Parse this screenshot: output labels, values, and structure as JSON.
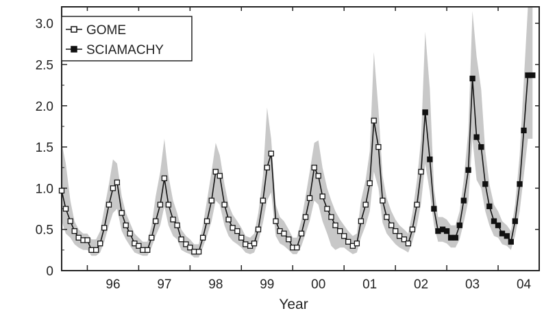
{
  "chart_data": {
    "type": "line",
    "xlabel": "Year",
    "ylabel": "",
    "xlim": [
      1995.5,
      2004.8
    ],
    "ylim": [
      0,
      3.2
    ],
    "x_ticks": [
      {
        "value": 1996.5,
        "label": "96"
      },
      {
        "value": 1997.5,
        "label": "97"
      },
      {
        "value": 1998.5,
        "label": "98"
      },
      {
        "value": 1999.5,
        "label": "99"
      },
      {
        "value": 2000.5,
        "label": "00"
      },
      {
        "value": 2001.5,
        "label": "01"
      },
      {
        "value": 2002.5,
        "label": "02"
      },
      {
        "value": 2003.5,
        "label": "03"
      },
      {
        "value": 2004.5,
        "label": "04"
      }
    ],
    "y_ticks": [
      {
        "value": 0,
        "label": "0"
      },
      {
        "value": 0.5,
        "label": "0.5"
      },
      {
        "value": 1.0,
        "label": "1.0"
      },
      {
        "value": 1.5,
        "label": "1.5"
      },
      {
        "value": 2.0,
        "label": "2.0"
      },
      {
        "value": 2.5,
        "label": "2.5"
      },
      {
        "value": 3.0,
        "label": "3.0"
      }
    ],
    "legend_position": "top-left",
    "grid": false,
    "band_color": "#c8c8c8",
    "line_color": "#111111",
    "series": [
      {
        "name": "GOME",
        "marker": "open-square",
        "x": [
          1995.5,
          1995.58,
          1995.67,
          1995.75,
          1995.83,
          1995.92,
          1996.0,
          1996.08,
          1996.17,
          1996.25,
          1996.33,
          1996.42,
          1996.5,
          1996.58,
          1996.67,
          1996.75,
          1996.83,
          1996.92,
          1997.0,
          1997.08,
          1997.17,
          1997.25,
          1997.33,
          1997.42,
          1997.5,
          1997.58,
          1997.67,
          1997.75,
          1997.83,
          1997.92,
          1998.0,
          1998.08,
          1998.17,
          1998.25,
          1998.33,
          1998.42,
          1998.5,
          1998.58,
          1998.67,
          1998.75,
          1998.83,
          1998.92,
          1999.0,
          1999.08,
          1999.17,
          1999.25,
          1999.33,
          1999.42,
          1999.5,
          1999.58,
          1999.67,
          1999.75,
          1999.83,
          1999.92,
          2000.0,
          2000.08,
          2000.17,
          2000.25,
          2000.33,
          2000.42,
          2000.5,
          2000.58,
          2000.67,
          2000.75,
          2000.83,
          2000.92,
          2001.0,
          2001.08,
          2001.17,
          2001.25,
          2001.33,
          2001.42,
          2001.5,
          2001.58,
          2001.67,
          2001.75,
          2001.83,
          2001.92,
          2002.0,
          2002.08,
          2002.17,
          2002.25,
          2002.33,
          2002.42,
          2002.5,
          2002.58
        ],
        "values": [
          0.97,
          0.75,
          0.6,
          0.48,
          0.4,
          0.37,
          0.37,
          0.25,
          0.25,
          0.33,
          0.52,
          0.8,
          1.0,
          1.07,
          0.7,
          0.55,
          0.45,
          0.33,
          0.3,
          0.25,
          0.25,
          0.4,
          0.6,
          0.8,
          1.12,
          0.8,
          0.62,
          0.55,
          0.38,
          0.32,
          0.28,
          0.23,
          0.23,
          0.4,
          0.6,
          0.85,
          1.2,
          1.15,
          0.8,
          0.62,
          0.52,
          0.48,
          0.4,
          0.32,
          0.3,
          0.33,
          0.5,
          0.85,
          1.25,
          1.42,
          0.6,
          0.48,
          0.45,
          0.38,
          0.28,
          0.28,
          0.45,
          0.65,
          0.88,
          1.25,
          1.15,
          0.9,
          0.75,
          0.65,
          0.55,
          0.48,
          0.42,
          0.35,
          0.3,
          0.33,
          0.6,
          0.8,
          1.06,
          1.82,
          1.5,
          0.85,
          0.65,
          0.55,
          0.48,
          0.42,
          0.38,
          0.33,
          0.5,
          0.8,
          1.2,
          1.92
        ]
      },
      {
        "name": "SCIAMACHY",
        "marker": "filled-square",
        "x": [
          2002.58,
          2002.67,
          2002.75,
          2002.83,
          2002.92,
          2003.0,
          2003.08,
          2003.17,
          2003.25,
          2003.33,
          2003.42,
          2003.5,
          2003.58,
          2003.67,
          2003.75,
          2003.83,
          2003.92,
          2004.0,
          2004.08,
          2004.17,
          2004.25,
          2004.33,
          2004.42,
          2004.5,
          2004.58,
          2004.67
        ],
        "values": [
          1.92,
          1.35,
          0.75,
          0.48,
          0.5,
          0.48,
          0.4,
          0.4,
          0.55,
          0.85,
          1.22,
          2.33,
          1.62,
          1.5,
          1.05,
          0.78,
          0.6,
          0.55,
          0.45,
          0.42,
          0.35,
          0.6,
          1.05,
          1.7,
          2.37,
          2.37
        ]
      }
    ],
    "band": {
      "x": [
        1995.5,
        1995.58,
        1995.67,
        1995.75,
        1995.83,
        1995.92,
        1996.0,
        1996.08,
        1996.17,
        1996.25,
        1996.33,
        1996.42,
        1996.5,
        1996.58,
        1996.67,
        1996.75,
        1996.83,
        1996.92,
        1997.0,
        1997.08,
        1997.17,
        1997.25,
        1997.33,
        1997.42,
        1997.5,
        1997.58,
        1997.67,
        1997.75,
        1997.83,
        1997.92,
        1998.0,
        1998.08,
        1998.17,
        1998.25,
        1998.33,
        1998.42,
        1998.5,
        1998.58,
        1998.67,
        1998.75,
        1998.83,
        1998.92,
        1999.0,
        1999.08,
        1999.17,
        1999.25,
        1999.33,
        1999.42,
        1999.5,
        1999.58,
        1999.67,
        1999.75,
        1999.83,
        1999.92,
        2000.0,
        2000.08,
        2000.17,
        2000.25,
        2000.33,
        2000.42,
        2000.5,
        2000.58,
        2000.67,
        2000.75,
        2000.83,
        2000.92,
        2001.0,
        2001.08,
        2001.17,
        2001.25,
        2001.33,
        2001.42,
        2001.5,
        2001.58,
        2001.67,
        2001.75,
        2001.83,
        2001.92,
        2002.0,
        2002.08,
        2002.17,
        2002.25,
        2002.33,
        2002.42,
        2002.5,
        2002.58,
        2002.67,
        2002.75,
        2002.83,
        2002.92,
        2003.0,
        2003.08,
        2003.17,
        2003.25,
        2003.33,
        2003.42,
        2003.5,
        2003.58,
        2003.67,
        2003.75,
        2003.83,
        2003.92,
        2004.0,
        2004.08,
        2004.17,
        2004.25,
        2004.33,
        2004.42,
        2004.5,
        2004.58,
        2004.67
      ],
      "upper": [
        1.55,
        1.3,
        0.85,
        0.6,
        0.5,
        0.45,
        0.45,
        0.38,
        0.38,
        0.48,
        0.75,
        1.05,
        1.35,
        1.3,
        0.9,
        0.7,
        0.58,
        0.45,
        0.4,
        0.35,
        0.35,
        0.55,
        0.9,
        1.2,
        1.6,
        1.15,
        0.85,
        0.7,
        0.5,
        0.42,
        0.38,
        0.32,
        0.32,
        0.55,
        0.85,
        1.2,
        1.55,
        1.4,
        1.05,
        0.8,
        0.68,
        0.6,
        0.52,
        0.42,
        0.4,
        0.45,
        0.7,
        1.15,
        1.98,
        1.6,
        0.8,
        0.65,
        0.6,
        0.5,
        0.4,
        0.4,
        0.62,
        0.9,
        1.2,
        1.55,
        1.58,
        1.25,
        1.0,
        0.85,
        0.72,
        0.62,
        0.55,
        0.48,
        0.42,
        0.45,
        0.85,
        1.1,
        1.45,
        2.65,
        1.95,
        1.15,
        0.88,
        0.72,
        0.62,
        0.55,
        0.5,
        0.45,
        0.7,
        1.1,
        1.6,
        2.9,
        2.2,
        1.0,
        0.65,
        0.65,
        0.62,
        0.55,
        0.55,
        0.72,
        1.1,
        1.7,
        3.15,
        2.6,
        2.2,
        1.45,
        1.05,
        0.8,
        0.72,
        0.6,
        0.55,
        0.48,
        0.8,
        1.4,
        2.3,
        3.2,
        3.2
      ],
      "lower": [
        0.6,
        0.45,
        0.4,
        0.32,
        0.28,
        0.25,
        0.25,
        0.18,
        0.18,
        0.22,
        0.35,
        0.55,
        0.7,
        0.75,
        0.48,
        0.38,
        0.3,
        0.22,
        0.2,
        0.18,
        0.18,
        0.28,
        0.42,
        0.55,
        0.78,
        0.55,
        0.42,
        0.38,
        0.25,
        0.22,
        0.2,
        0.16,
        0.16,
        0.28,
        0.42,
        0.6,
        0.85,
        0.8,
        0.55,
        0.42,
        0.36,
        0.32,
        0.28,
        0.22,
        0.2,
        0.22,
        0.35,
        0.58,
        0.85,
        0.95,
        0.42,
        0.33,
        0.3,
        0.25,
        0.2,
        0.2,
        0.3,
        0.45,
        0.6,
        0.85,
        0.8,
        0.6,
        0.45,
        0.3,
        0.25,
        0.28,
        0.28,
        0.24,
        0.2,
        0.22,
        0.4,
        0.55,
        0.72,
        1.2,
        1.0,
        0.58,
        0.45,
        0.38,
        0.32,
        0.28,
        0.25,
        0.22,
        0.35,
        0.55,
        0.82,
        1.3,
        0.95,
        0.55,
        0.35,
        0.35,
        0.33,
        0.28,
        0.28,
        0.38,
        0.58,
        0.85,
        1.6,
        1.1,
        1.0,
        0.72,
        0.55,
        0.42,
        0.4,
        0.32,
        0.3,
        0.25,
        0.42,
        0.72,
        1.15,
        1.6,
        1.6
      ]
    }
  }
}
